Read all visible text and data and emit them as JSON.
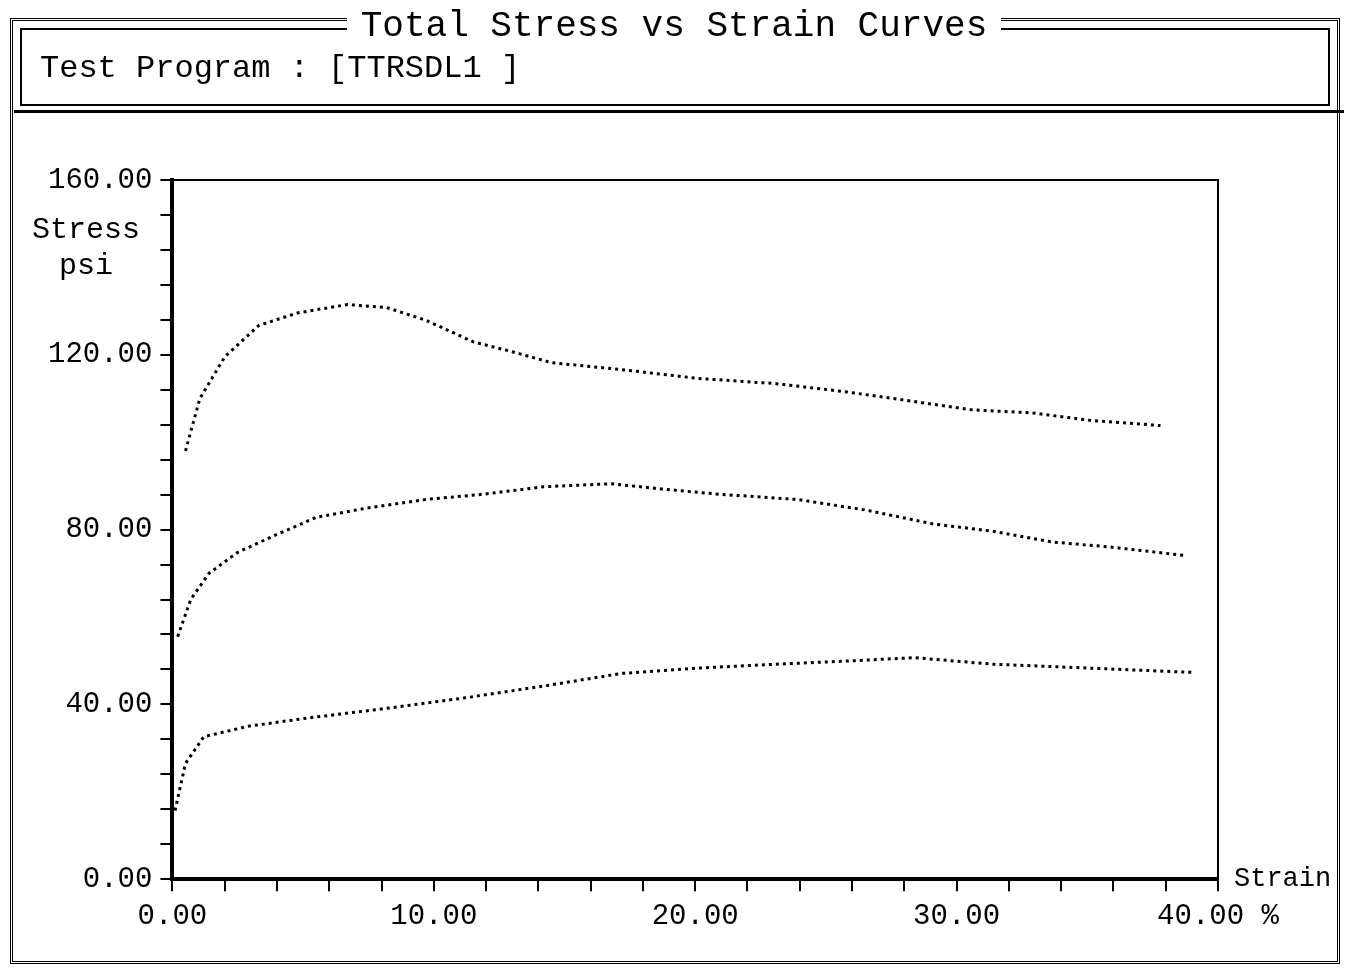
{
  "chart_data": {
    "type": "line",
    "title": "Total Stress vs Strain Curves",
    "subtitle": "Test Program : [TTRSDL1 ]",
    "xlabel": "Strain",
    "ylabel": "Stress psi",
    "xlim": [
      0,
      40
    ],
    "ylim": [
      0,
      160
    ],
    "xticks": [
      {
        "value": 0,
        "label": "0.00"
      },
      {
        "value": 2,
        "label": null
      },
      {
        "value": 4,
        "label": null
      },
      {
        "value": 6,
        "label": null
      },
      {
        "value": 8,
        "label": null
      },
      {
        "value": 10,
        "label": "10.00"
      },
      {
        "value": 12,
        "label": null
      },
      {
        "value": 14,
        "label": null
      },
      {
        "value": 16,
        "label": null
      },
      {
        "value": 18,
        "label": null
      },
      {
        "value": 20,
        "label": "20.00"
      },
      {
        "value": 22,
        "label": null
      },
      {
        "value": 24,
        "label": null
      },
      {
        "value": 26,
        "label": null
      },
      {
        "value": 28,
        "label": null
      },
      {
        "value": 30,
        "label": "30.00"
      },
      {
        "value": 32,
        "label": null
      },
      {
        "value": 34,
        "label": null
      },
      {
        "value": 36,
        "label": null
      },
      {
        "value": 38,
        "label": null
      },
      {
        "value": 40,
        "label": "40.00 %"
      }
    ],
    "yticks": [
      {
        "value": 0,
        "label": "0.00"
      },
      {
        "value": 8,
        "label": null
      },
      {
        "value": 16,
        "label": null
      },
      {
        "value": 24,
        "label": null
      },
      {
        "value": 32,
        "label": null
      },
      {
        "value": 40,
        "label": "40.00"
      },
      {
        "value": 48,
        "label": null
      },
      {
        "value": 56,
        "label": null
      },
      {
        "value": 64,
        "label": null
      },
      {
        "value": 72,
        "label": null
      },
      {
        "value": 80,
        "label": "80.00"
      },
      {
        "value": 88,
        "label": null
      },
      {
        "value": 96,
        "label": null
      },
      {
        "value": 104,
        "label": null
      },
      {
        "value": 112,
        "label": null
      },
      {
        "value": 120,
        "label": "120.00"
      },
      {
        "value": 128,
        "label": null
      },
      {
        "value": 136,
        "label": null
      },
      {
        "value": 144,
        "label": null
      },
      {
        "value": 152,
        "label": null
      },
      {
        "value": 160,
        "label": "160.00"
      }
    ],
    "grid": false,
    "legend": false,
    "marker": "none",
    "line_style": "dotted",
    "series": [
      {
        "color": "#000000",
        "x": [
          0.5,
          1.05,
          2.0,
          3.3,
          4.8,
          6.7,
          8.2,
          9.7,
          11.5,
          13,
          14.5,
          17.2,
          20.1,
          23.1,
          25.8,
          28.4,
          30.6,
          32.9,
          35.1,
          37.8
        ],
        "values": [
          98,
          110,
          119.5,
          126.7,
          129.6,
          131.5,
          130.8,
          127.9,
          123,
          120.7,
          118.2,
          116.6,
          114.6,
          113.4,
          111.5,
          109.3,
          107.4,
          106.7,
          105,
          103.8
        ]
      },
      {
        "color": "#000000",
        "x": [
          0.2,
          0.7,
          1.4,
          2.5,
          4.0,
          5.5,
          7.4,
          9.7,
          11.9,
          14.2,
          16.8,
          18.7,
          20.9,
          23.9,
          26.5,
          29.1,
          31.4,
          33.6,
          35.9,
          38.7
        ],
        "values": [
          55.5,
          64,
          70,
          74.8,
          78.9,
          82.8,
          84.9,
          86.9,
          88.1,
          89.8,
          90.5,
          89.3,
          88.1,
          86.9,
          84.5,
          81.3,
          79.6,
          77.2,
          76,
          74.1
        ]
      },
      {
        "color": "#000000",
        "x": [
          0.1,
          0.5,
          1.2,
          2.9,
          5.2,
          8.2,
          11.2,
          14.2,
          17.2,
          20.1,
          23.1,
          26.1,
          28.4,
          31.4,
          35.1,
          39.1
        ],
        "values": [
          15.7,
          26.5,
          32.6,
          35,
          36.9,
          39.1,
          41.5,
          44.2,
          47.1,
          48.3,
          49.2,
          50,
          50.7,
          49.2,
          48.3,
          47.3
        ]
      }
    ]
  }
}
